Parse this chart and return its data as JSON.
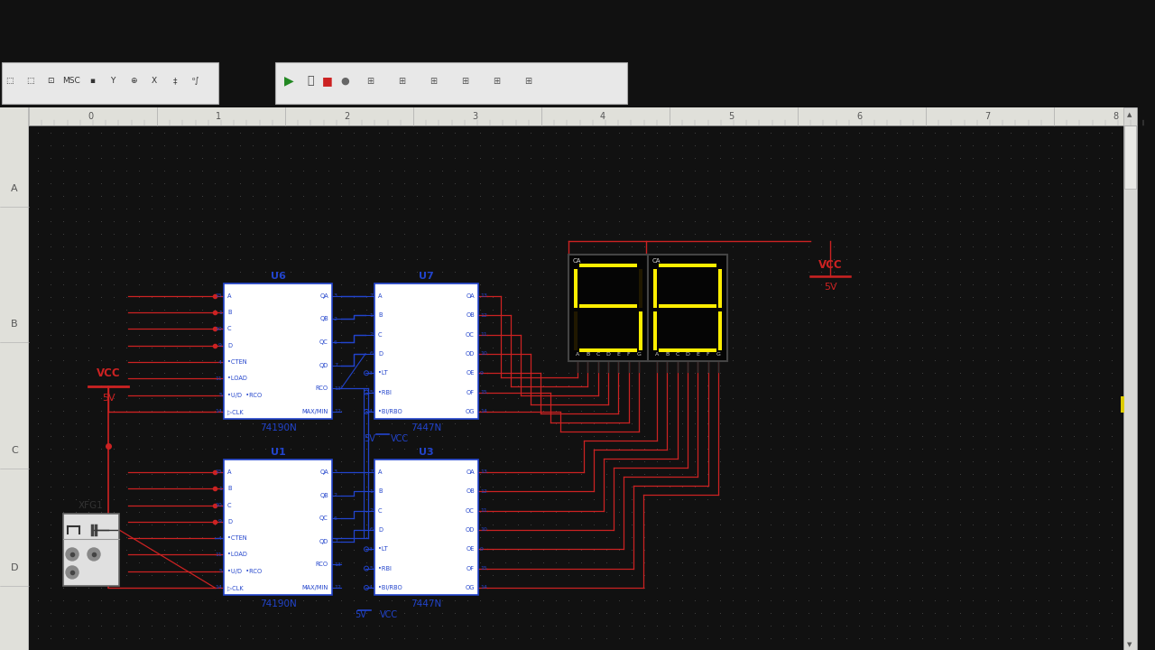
{
  "bg_outer": "#111111",
  "bg_toolbar_gray": "#e8e8e8",
  "bg_schematic": "#f8f8f5",
  "dot_color": "#cccccc",
  "ruler_bg": "#e0e0da",
  "ruler_text": "#555555",
  "ruler_line": "#aaaaaa",
  "display_bg": "#0a0a0a",
  "display_digit_color": "#ffee00",
  "display_dim_color": "#201800",
  "comp_border": "#2244cc",
  "wire_red": "#cc2222",
  "wire_blue": "#2244cc",
  "text_black": "#111111",
  "digit_left": "5",
  "digit_right": "8",
  "ruler_ticks": [
    "0",
    "1",
    "2",
    "3",
    "4",
    "5",
    "6",
    "7",
    "8"
  ],
  "row_labels": [
    "A",
    "B",
    "C",
    "D"
  ]
}
